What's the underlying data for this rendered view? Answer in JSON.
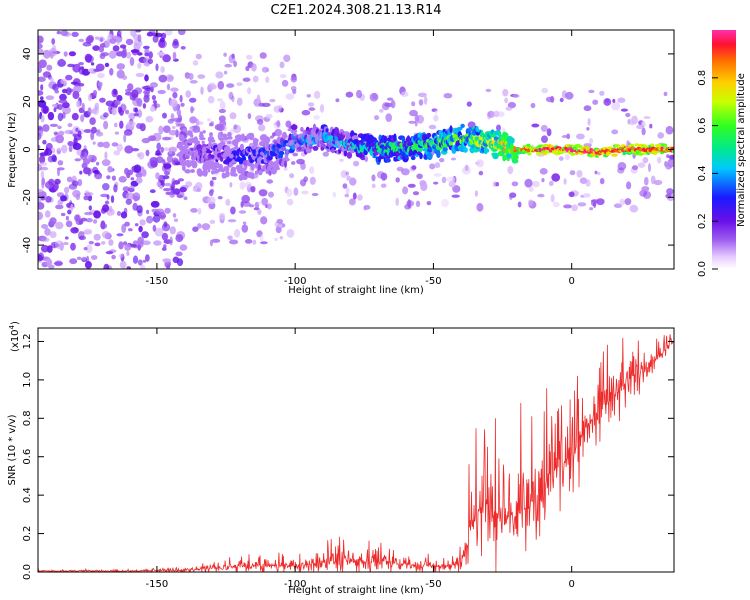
{
  "chart_data": [
    {
      "type": "heatmap",
      "title": "C2E1.2024.308.21.13.R14",
      "xlabel": "Height of straight line (km)",
      "ylabel": "Frequency (Hz)",
      "xlim": [
        -193,
        37
      ],
      "ylim": [
        -50,
        50
      ],
      "xticks": [
        -150,
        -100,
        -50,
        0
      ],
      "yticks": [
        -40,
        -20,
        0,
        20,
        40
      ],
      "colorbar": {
        "label": "Normalized spectral amplitude",
        "range": [
          0,
          1
        ],
        "ticks": [
          0.0,
          0.2,
          0.4,
          0.6,
          0.8
        ]
      },
      "ridge": {
        "x": [
          -140,
          -130,
          -120,
          -110,
          -100,
          -90,
          -80,
          -70,
          -60,
          -50,
          -40,
          -30,
          -20,
          -10,
          0,
          10,
          20,
          30,
          37
        ],
        "frequency": [
          0,
          -2,
          -3,
          -2,
          3,
          5,
          2,
          0,
          1,
          2,
          5,
          3,
          0,
          0,
          0,
          -1,
          0,
          0,
          0
        ],
        "amplitude": [
          0.12,
          0.2,
          0.25,
          0.3,
          0.35,
          0.4,
          0.45,
          0.5,
          0.55,
          0.6,
          0.62,
          0.7,
          0.85,
          0.95,
          0.97,
          0.95,
          0.9,
          0.92,
          0.9
        ]
      }
    },
    {
      "type": "line",
      "xlabel": "Height of straight line (km)",
      "ylabel": "SNR (10 * v/v)",
      "y_multiplier": "(x10",
      "y_multiplier_exp": "4",
      "xlim": [
        -193,
        37
      ],
      "ylim": [
        0,
        1.27
      ],
      "xticks": [
        -150,
        -100,
        -50,
        0
      ],
      "yticks": [
        "0.0",
        "0.2",
        "0.4",
        "0.6",
        "0.8",
        "1.0",
        "1.2"
      ],
      "color": "#ee2a2a",
      "envelope": {
        "x": [
          -193,
          -160,
          -140,
          -130,
          -120,
          -110,
          -100,
          -90,
          -80,
          -70,
          -60,
          -50,
          -45,
          -40,
          -38,
          -35,
          -32,
          -30,
          -28,
          -25,
          -20,
          -15,
          -10,
          -5,
          0,
          5,
          10,
          15,
          20,
          25,
          30,
          37
        ],
        "base": [
          0.005,
          0.005,
          0.008,
          0.02,
          0.03,
          0.035,
          0.03,
          0.05,
          0.06,
          0.05,
          0.04,
          0.03,
          0.03,
          0.05,
          0.15,
          0.3,
          0.35,
          0.35,
          0.3,
          0.32,
          0.3,
          0.35,
          0.45,
          0.55,
          0.6,
          0.75,
          0.85,
          0.9,
          1.0,
          1.05,
          1.1,
          1.2
        ],
        "amplitude": [
          0.01,
          0.01,
          0.02,
          0.04,
          0.06,
          0.07,
          0.07,
          0.11,
          0.15,
          0.12,
          0.1,
          0.07,
          0.05,
          0.1,
          0.3,
          0.55,
          0.85,
          0.65,
          0.6,
          0.55,
          0.6,
          0.55,
          0.5,
          0.45,
          0.45,
          0.4,
          0.35,
          0.3,
          0.25,
          0.2,
          0.15,
          0.07
        ]
      }
    }
  ]
}
